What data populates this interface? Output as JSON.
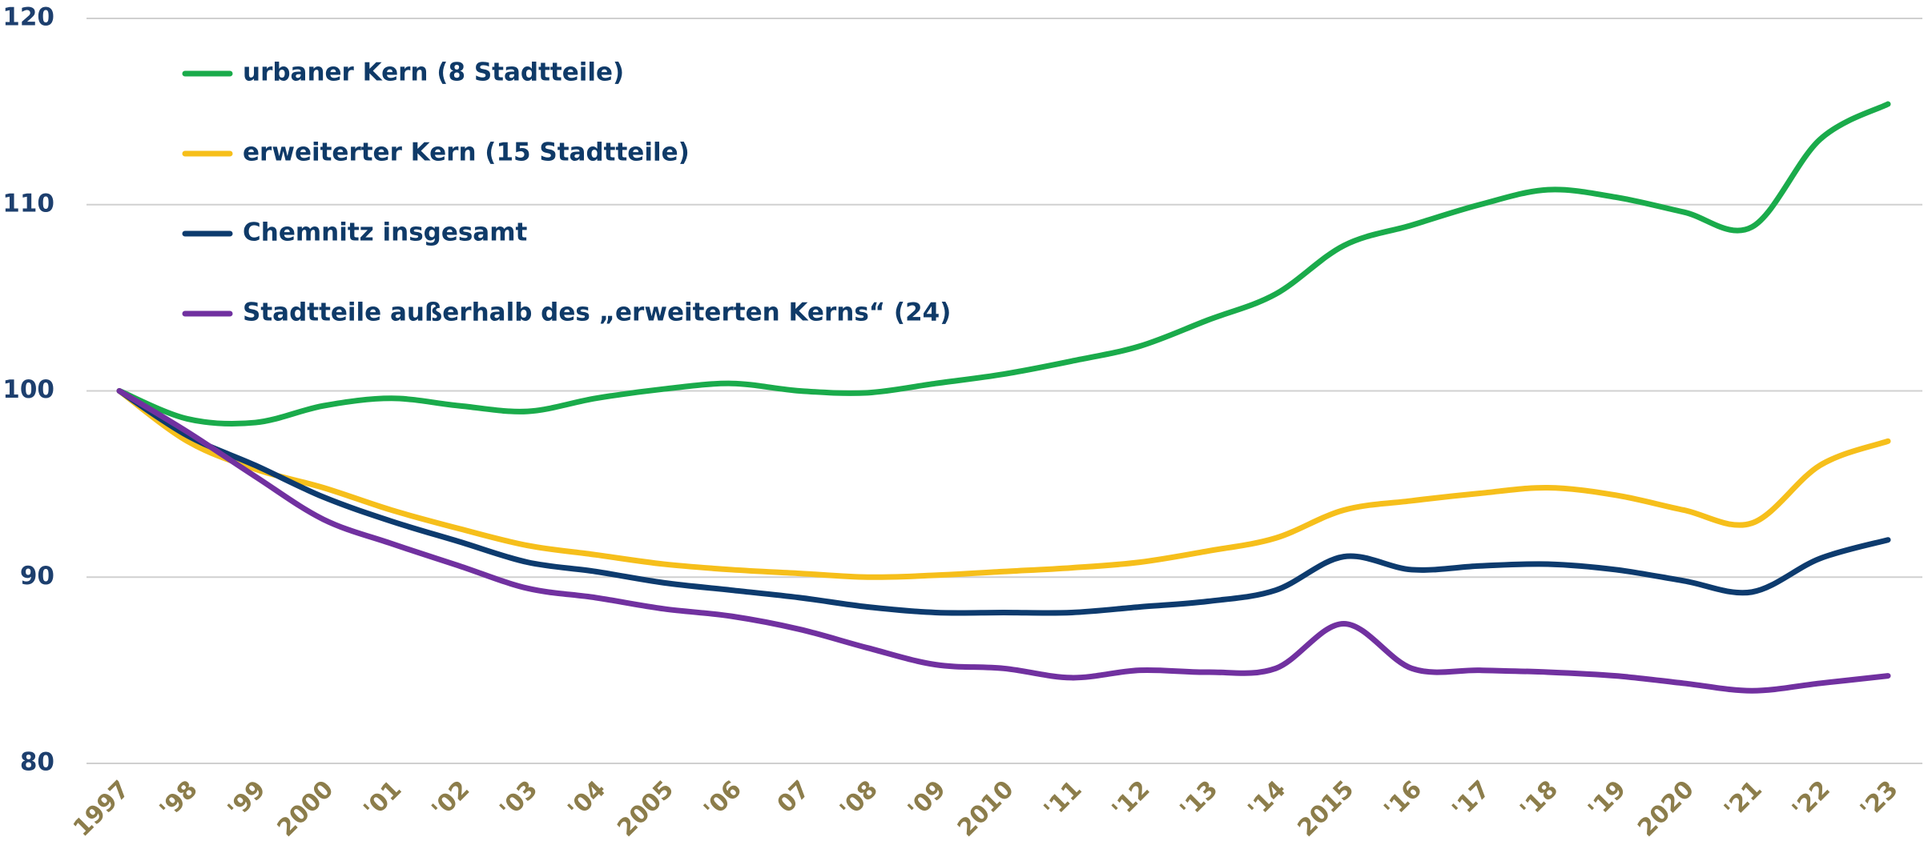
{
  "chart_data": {
    "type": "line",
    "categories": [
      "1997",
      "'98",
      "'99",
      "2000",
      "'01",
      "'02",
      "'03",
      "'04",
      "2005",
      "'06",
      "07",
      "'08",
      "'09",
      "2010",
      "'11",
      "'12",
      "'13",
      "'14",
      "2015",
      "'16",
      "'17",
      "'18",
      "'19",
      "2020",
      "'21",
      "'22",
      "'23"
    ],
    "series": [
      {
        "name": "urbaner Kern (8 Stadtteile)",
        "color": "#1aab4b",
        "values": [
          100,
          98.5,
          98.3,
          99.2,
          99.6,
          99.2,
          98.9,
          99.6,
          100.1,
          100.4,
          100.0,
          99.9,
          100.4,
          100.9,
          101.6,
          102.4,
          103.8,
          105.2,
          107.8,
          108.9,
          110.0,
          110.8,
          110.4,
          109.6,
          108.8,
          113.5,
          115.4
        ]
      },
      {
        "name": "erweiterter Kern (15 Stadtteile)",
        "color": "#f6bf1b",
        "values": [
          100,
          97.3,
          95.8,
          94.8,
          93.6,
          92.6,
          91.7,
          91.2,
          90.7,
          90.4,
          90.2,
          90.0,
          90.1,
          90.3,
          90.5,
          90.8,
          91.4,
          92.1,
          93.6,
          94.1,
          94.5,
          94.8,
          94.4,
          93.6,
          92.9,
          96.0,
          97.3
        ]
      },
      {
        "name": "Chemnitz insgesamt",
        "color": "#0d3b6e",
        "values": [
          100,
          97.6,
          96.0,
          94.3,
          93.0,
          91.9,
          90.8,
          90.3,
          89.7,
          89.3,
          88.9,
          88.4,
          88.1,
          88.1,
          88.1,
          88.4,
          88.7,
          89.3,
          91.1,
          90.4,
          90.6,
          90.7,
          90.4,
          89.8,
          89.2,
          91.0,
          92.0
        ]
      },
      {
        "name": "Stadtteile außerhalb des „erweiterten Kerns“ (24)",
        "color": "#7131a0",
        "values": [
          100,
          97.8,
          95.4,
          93.1,
          91.8,
          90.6,
          89.4,
          88.9,
          88.3,
          87.9,
          87.2,
          86.2,
          85.3,
          85.1,
          84.6,
          85.0,
          84.9,
          85.1,
          87.5,
          85.1,
          85.0,
          84.9,
          84.7,
          84.3,
          83.9,
          84.3,
          84.7
        ]
      }
    ],
    "ylim": [
      80,
      120
    ],
    "yticks": [
      80,
      90,
      100,
      110,
      120
    ],
    "grid": true,
    "legend": "top-left"
  }
}
